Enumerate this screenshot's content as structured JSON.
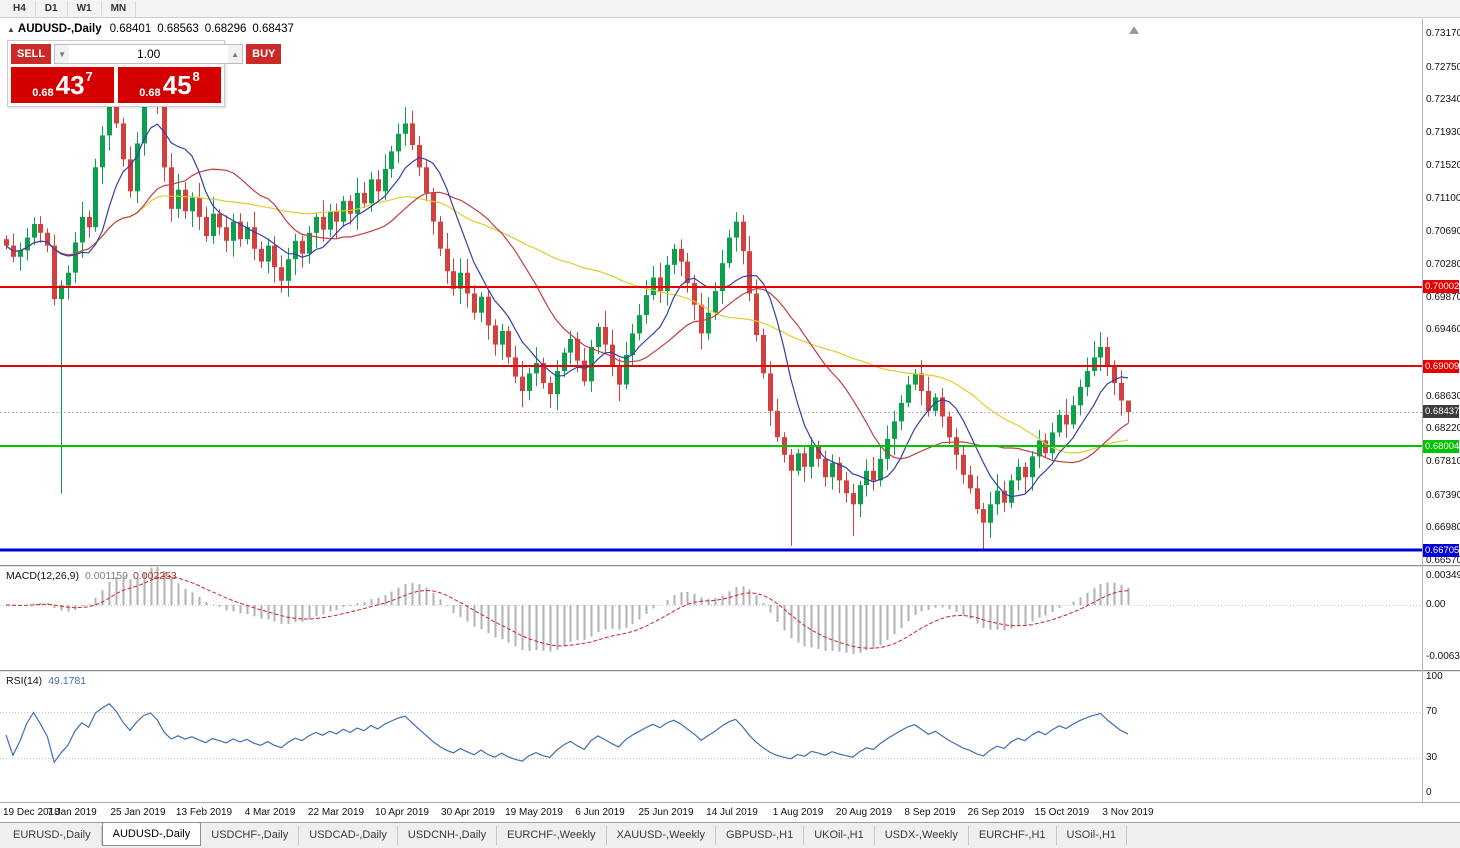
{
  "toolbar": {
    "timeframes": [
      "H4",
      "D1",
      "W1",
      "MN"
    ]
  },
  "title": {
    "marker": "▲",
    "symbol": "AUDUSD-,Daily",
    "open": "0.68401",
    "high": "0.68563",
    "low": "0.68296",
    "close": "0.68437"
  },
  "trade_panel": {
    "sell_label": "SELL",
    "buy_label": "BUY",
    "volume": "1.00",
    "spin_down": "▼",
    "spin_up": "▲",
    "sell_price_prefix": "0.68",
    "sell_price_big": "43",
    "sell_price_sup": "7",
    "buy_price_prefix": "0.68",
    "buy_price_big": "45",
    "buy_price_sup": "8"
  },
  "indicators": {
    "macd": {
      "name": "MACD(12,26,9)",
      "value": "0.001159",
      "signal": "0.002253",
      "axis": [
        "0.00349",
        "0.00",
        "-0.00637"
      ]
    },
    "rsi": {
      "name": "RSI(14)",
      "value": "49.1781",
      "axis": [
        "100",
        "70",
        "30",
        "0"
      ]
    }
  },
  "chart_data": {
    "type": "candlestick",
    "symbol": "AUDUSD",
    "timeframe": "Daily",
    "y_axis": {
      "top": 0.7317,
      "bottom": 0.6657,
      "ticks": [
        "0.73170",
        "0.72750",
        "0.72340",
        "0.71930",
        "0.71520",
        "0.71100",
        "0.70690",
        "0.70280",
        "0.69870",
        "0.69460",
        "0.68630",
        "0.68220",
        "0.67810",
        "0.67390",
        "0.66980",
        "0.66570"
      ]
    },
    "x_labels": [
      "19 Dec 2018",
      "7 Jan 2019",
      "25 Jan 2019",
      "13 Feb 2019",
      "4 Mar 2019",
      "22 Mar 2019",
      "10 Apr 2019",
      "30 Apr 2019",
      "19 May 2019",
      "6 Jun 2019",
      "25 Jun 2019",
      "14 Jul 2019",
      "1 Aug 2019",
      "20 Aug 2019",
      "8 Sep 2019",
      "26 Sep 2019",
      "15 Oct 2019",
      "3 Nov 2019"
    ],
    "first_open": 0.706,
    "closes": [
      0.7052,
      0.7038,
      0.7046,
      0.7062,
      0.7079,
      0.7068,
      0.7052,
      0.6985,
      0.7002,
      0.7018,
      0.7056,
      0.7088,
      0.7075,
      0.715,
      0.719,
      0.723,
      0.7205,
      0.716,
      0.712,
      0.718,
      0.724,
      0.7268,
      0.723,
      0.715,
      0.7098,
      0.7122,
      0.7095,
      0.7112,
      0.7088,
      0.7064,
      0.7092,
      0.7075,
      0.7058,
      0.7082,
      0.706,
      0.7075,
      0.7048,
      0.7032,
      0.7052,
      0.7025,
      0.7008,
      0.7035,
      0.7058,
      0.7042,
      0.7068,
      0.7088,
      0.7072,
      0.7095,
      0.7082,
      0.7108,
      0.7092,
      0.7118,
      0.7105,
      0.7135,
      0.712,
      0.7148,
      0.717,
      0.7192,
      0.7205,
      0.7178,
      0.715,
      0.7118,
      0.7082,
      0.7048,
      0.702,
      0.6998,
      0.7018,
      0.6992,
      0.6968,
      0.6988,
      0.6952,
      0.6928,
      0.6945,
      0.6912,
      0.6888,
      0.687,
      0.6892,
      0.6905,
      0.688,
      0.6866,
      0.6895,
      0.6918,
      0.6935,
      0.6908,
      0.6882,
      0.6925,
      0.695,
      0.6928,
      0.6902,
      0.6878,
      0.6915,
      0.6942,
      0.6965,
      0.699,
      0.7012,
      0.6995,
      0.7028,
      0.7048,
      0.7032,
      0.7005,
      0.6978,
      0.6942,
      0.6968,
      0.6995,
      0.703,
      0.7062,
      0.7082,
      0.7045,
      0.6992,
      0.694,
      0.6892,
      0.6845,
      0.6812,
      0.679,
      0.677,
      0.6792,
      0.6775,
      0.68,
      0.6785,
      0.6762,
      0.678,
      0.6758,
      0.6742,
      0.6728,
      0.6752,
      0.677,
      0.6758,
      0.6785,
      0.681,
      0.6832,
      0.6855,
      0.6878,
      0.6892,
      0.687,
      0.6845,
      0.6862,
      0.6838,
      0.6812,
      0.679,
      0.6765,
      0.6748,
      0.6722,
      0.6705,
      0.6728,
      0.6745,
      0.673,
      0.6758,
      0.6775,
      0.6762,
      0.6788,
      0.6808,
      0.6792,
      0.6818,
      0.684,
      0.6828,
      0.6852,
      0.6875,
      0.6895,
      0.6912,
      0.6925,
      0.6902,
      0.688,
      0.6858,
      0.68437
    ],
    "wick_overrides": {
      "8": {
        "l": 0.6741
      },
      "40": {
        "l": 0.6993
      },
      "114": {
        "l": 0.6676
      },
      "123": {
        "l": 0.6688
      },
      "142": {
        "l": 0.667
      },
      "163": {
        "h": 0.68563,
        "l": 0.68296
      }
    },
    "hlines": [
      {
        "value": 0.70002,
        "label": "0.70002",
        "color": "#e60000",
        "width": 2
      },
      {
        "value": 0.69009,
        "label": "0.69009",
        "color": "#e60000",
        "width": 2
      },
      {
        "value": 0.68004,
        "label": "0.68004",
        "color": "#00c300",
        "width": 2
      },
      {
        "value": 0.66705,
        "label": "0.66705",
        "color": "#0000d6",
        "width": 3
      }
    ],
    "current_price": {
      "value": 0.68437,
      "label": "0.68437",
      "badge_color": "#3c3c3c"
    },
    "overlays": [
      {
        "name": "ma-slow",
        "period": 45,
        "color": "#e0cc30"
      },
      {
        "name": "ma-medium",
        "period": 20,
        "color": "#bf4040"
      },
      {
        "name": "ma-fast",
        "period": 8,
        "color": "#3340a8"
      }
    ],
    "macd_params": {
      "fast": 12,
      "slow": 26,
      "signal": 9
    },
    "rsi_period": 14
  },
  "tabs": [
    {
      "label": "EURUSD-,Daily",
      "active": false
    },
    {
      "label": "AUDUSD-,Daily",
      "active": true
    },
    {
      "label": "USDCHF-,Daily",
      "active": false
    },
    {
      "label": "USDCAD-,Daily",
      "active": false
    },
    {
      "label": "USDCNH-,Daily",
      "active": false
    },
    {
      "label": "EURCHF-,Weekly",
      "active": false
    },
    {
      "label": "XAUUSD-,Weekly",
      "active": false
    },
    {
      "label": "GBPUSD-,H1",
      "active": false
    },
    {
      "label": "UKOil-,H1",
      "active": false
    },
    {
      "label": "USDX-,Weekly",
      "active": false
    },
    {
      "label": "EURCHF-,H1",
      "active": false
    },
    {
      "label": "USOil-,H1",
      "active": false
    }
  ],
  "colors": {
    "bull": "#0da04c",
    "bear": "#d24040",
    "macd_hist": "#b2b2b2",
    "macd_signal": "#cc2626",
    "rsi_line": "#3f6fb5",
    "current_line": "#b8b8b8"
  }
}
